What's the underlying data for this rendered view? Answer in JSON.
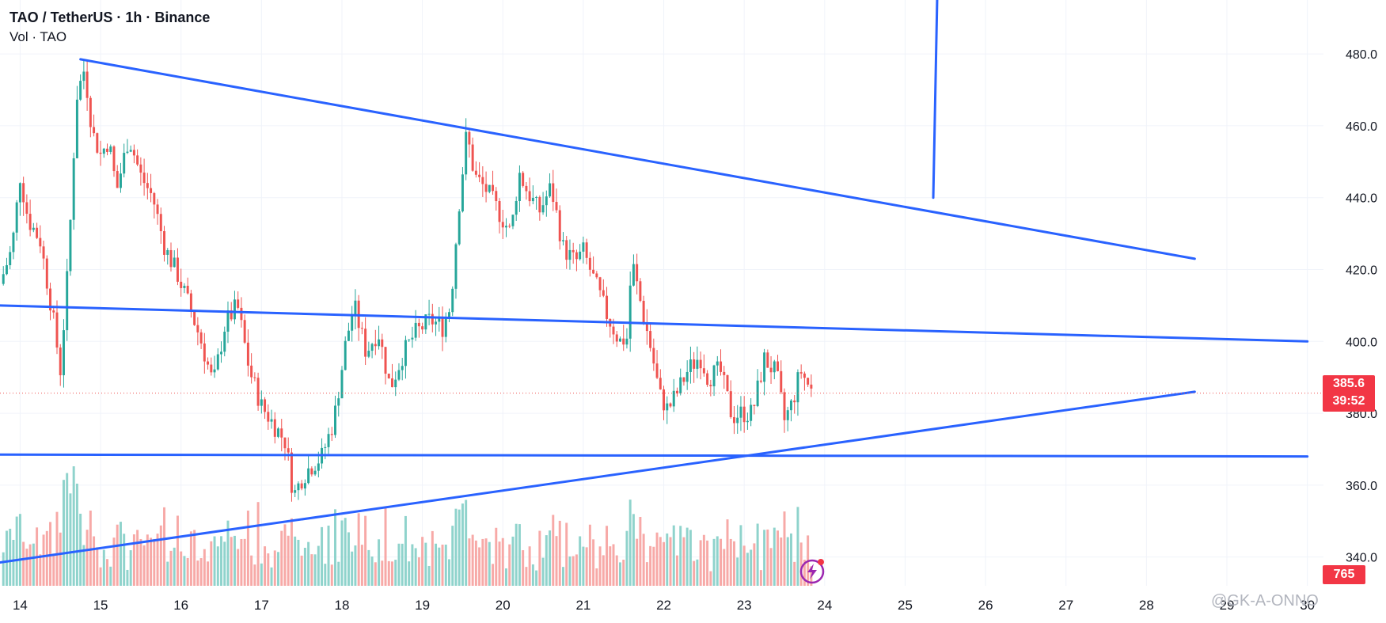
{
  "header": {
    "title": "TAO / TetherUS · 1h · Binance",
    "volume_label": "Vol · TAO"
  },
  "price_tag": {
    "price": "385.6",
    "countdown": "39:52"
  },
  "volume_tag": "765",
  "watermark": "@GK-A-ONNO",
  "icons": {
    "replay": "lightning-icon"
  },
  "colors": {
    "up": "#26a69a",
    "down": "#ef5350",
    "up_volume": "#8fd3cc",
    "down_volume": "#f7a9a7",
    "trendline": "#2962ff",
    "price_tag": "#f23645",
    "last_price_line": "#ef5350"
  },
  "chart_data": {
    "type": "candlestick",
    "title": "TAO / TetherUS · 1h · Binance",
    "interval": "1h",
    "x_axis": {
      "tick_labels": [
        "14",
        "15",
        "16",
        "17",
        "18",
        "19",
        "20",
        "21",
        "22",
        "23",
        "24",
        "25",
        "26",
        "27",
        "28",
        "29",
        "30"
      ],
      "range_days": [
        13.75,
        30.2
      ]
    },
    "y_axis": {
      "position": "right",
      "tick_labels": [
        "480.0",
        "460.0",
        "440.0",
        "420.0",
        "400.0",
        "380.0",
        "360.0",
        "340.0"
      ],
      "ticks": [
        480,
        460,
        440,
        420,
        400,
        380,
        360,
        340
      ],
      "range": [
        332,
        495
      ]
    },
    "grid": true,
    "last_price": 385.6,
    "price_path": [
      [
        13.75,
        416
      ],
      [
        13.9,
        426
      ],
      [
        14.0,
        446
      ],
      [
        14.1,
        434
      ],
      [
        14.25,
        428
      ],
      [
        14.4,
        408
      ],
      [
        14.5,
        392
      ],
      [
        14.6,
        422
      ],
      [
        14.7,
        468
      ],
      [
        14.8,
        476
      ],
      [
        14.9,
        458
      ],
      [
        15.0,
        452
      ],
      [
        15.1,
        456
      ],
      [
        15.2,
        442
      ],
      [
        15.35,
        457
      ],
      [
        15.5,
        446
      ],
      [
        15.65,
        440
      ],
      [
        15.8,
        426
      ],
      [
        15.95,
        419
      ],
      [
        16.1,
        410
      ],
      [
        16.25,
        400
      ],
      [
        16.4,
        388
      ],
      [
        16.55,
        405
      ],
      [
        16.7,
        410
      ],
      [
        16.85,
        392
      ],
      [
        17.0,
        382
      ],
      [
        17.15,
        377
      ],
      [
        17.3,
        372
      ],
      [
        17.4,
        357
      ],
      [
        17.5,
        362
      ],
      [
        17.6,
        365
      ],
      [
        17.75,
        368
      ],
      [
        17.9,
        378
      ],
      [
        18.05,
        400
      ],
      [
        18.15,
        410
      ],
      [
        18.3,
        397
      ],
      [
        18.45,
        403
      ],
      [
        18.6,
        387
      ],
      [
        18.75,
        396
      ],
      [
        18.9,
        402
      ],
      [
        19.1,
        406
      ],
      [
        19.25,
        404
      ],
      [
        19.35,
        410
      ],
      [
        19.45,
        437
      ],
      [
        19.55,
        458
      ],
      [
        19.65,
        446
      ],
      [
        19.8,
        442
      ],
      [
        19.95,
        436
      ],
      [
        20.1,
        430
      ],
      [
        20.2,
        447
      ],
      [
        20.3,
        442
      ],
      [
        20.45,
        436
      ],
      [
        20.6,
        443
      ],
      [
        20.75,
        426
      ],
      [
        20.9,
        422
      ],
      [
        21.0,
        425
      ],
      [
        21.15,
        416
      ],
      [
        21.3,
        407
      ],
      [
        21.45,
        400
      ],
      [
        21.55,
        401
      ],
      [
        21.6,
        423
      ],
      [
        21.7,
        412
      ],
      [
        21.85,
        397
      ],
      [
        21.95,
        385
      ],
      [
        22.05,
        381
      ],
      [
        22.15,
        385
      ],
      [
        22.3,
        392
      ],
      [
        22.45,
        396
      ],
      [
        22.55,
        390
      ],
      [
        22.7,
        392
      ],
      [
        22.85,
        379
      ],
      [
        22.95,
        380
      ],
      [
        23.1,
        380
      ],
      [
        23.25,
        395
      ],
      [
        23.4,
        391
      ],
      [
        23.5,
        378
      ],
      [
        23.6,
        383
      ],
      [
        23.7,
        392
      ],
      [
        23.85,
        385.6
      ]
    ],
    "volume_note": "volume histogram shown at bottom of price pane, colored by candle direction",
    "trendlines": [
      {
        "name": "descending-resistance",
        "points": [
          [
            14.75,
            478.5
          ],
          [
            28.6,
            423
          ]
        ]
      },
      {
        "name": "horizontal-level-upper",
        "points": [
          [
            13.75,
            410
          ],
          [
            30.0,
            400
          ]
        ]
      },
      {
        "name": "horizontal-level-lower",
        "points": [
          [
            13.75,
            368.5
          ],
          [
            30.0,
            368.0
          ]
        ]
      },
      {
        "name": "ascending-support",
        "points": [
          [
            13.75,
            338.5
          ],
          [
            28.6,
            386
          ]
        ]
      },
      {
        "name": "vertical-marker",
        "points": [
          [
            25.35,
            440
          ],
          [
            25.4,
            497
          ]
        ]
      }
    ]
  }
}
